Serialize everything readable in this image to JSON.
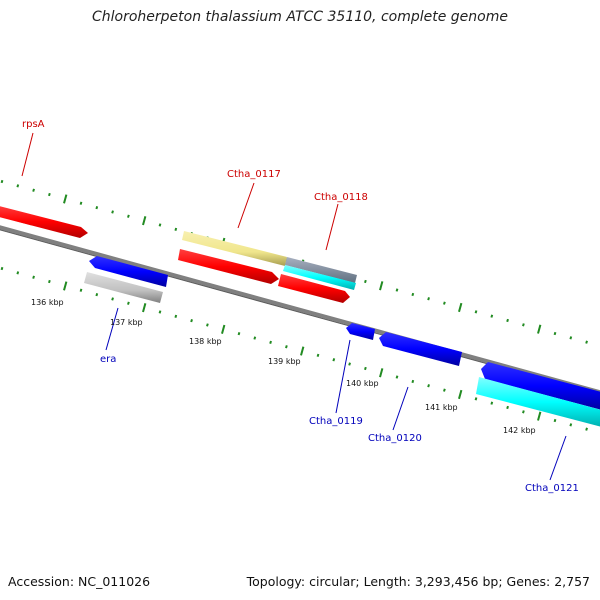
{
  "title": "Chloroherpeton thalassium ATCC 35110, complete genome",
  "footer": {
    "accession": "Accession: NC_011026",
    "summary": "Topology: circular; Length: 3,293,456 bp; Genes: 2,757"
  },
  "colors": {
    "backbone": "#808080",
    "forward_gene": "#ff0000",
    "forward_light": "#f08080",
    "reverse_gene": "#0000ff",
    "cyan_gene": "#00ffff",
    "khaki_gene": "#f0e68c",
    "gray_gene": "#c0c0c0",
    "tick": "#228b22",
    "forward_label": "#cc0000",
    "reverse_label": "#0000bb"
  },
  "ticks": {
    "unit": "kbp",
    "labels": [
      "136 kbp",
      "137 kbp",
      "138 kbp",
      "139 kbp",
      "140 kbp",
      "141 kbp",
      "142 kbp"
    ]
  },
  "gene_labels": {
    "rpsA": "rpsA",
    "ctha_0117": "Ctha_0117",
    "ctha_0118": "Ctha_0118",
    "era": "era",
    "ctha_0119": "Ctha_0119",
    "ctha_0120": "Ctha_0120",
    "ctha_0121": "Ctha_0121"
  }
}
